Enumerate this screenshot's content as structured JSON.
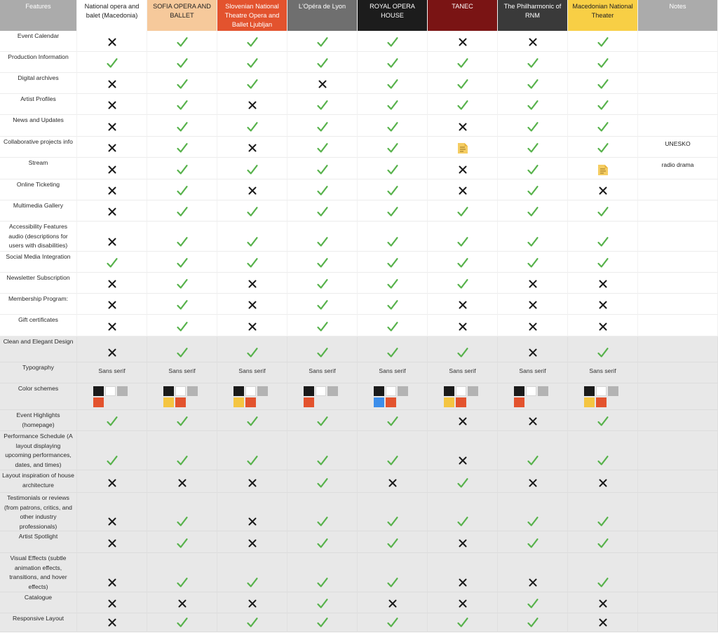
{
  "columns": [
    {
      "key": "features",
      "label": "Features",
      "bg": "#ababab",
      "fg": "#ffffff"
    },
    {
      "key": "nob",
      "label": "National opera and balet (Macedonia)",
      "bg": "#ffffff",
      "fg": "#222222"
    },
    {
      "key": "sofia",
      "label": "SOFIA OPERA AND BALLET",
      "bg": "#f6c99b",
      "fg": "#222222"
    },
    {
      "key": "sng",
      "label": "Slovenian National Theatre Opera and Ballet Ljubljan",
      "bg": "#e3532e",
      "fg": "#ffffff"
    },
    {
      "key": "lyon",
      "label": "L'Opéra de Lyon",
      "bg": "#6f6f6f",
      "fg": "#ffffff"
    },
    {
      "key": "roh",
      "label": "ROYAL OPERA HOUSE",
      "bg": "#1c1c1c",
      "fg": "#ffffff"
    },
    {
      "key": "tanec",
      "label": "TANEC",
      "bg": "#7a1414",
      "fg": "#ffffff"
    },
    {
      "key": "phil",
      "label": "The Philharmonic of RNM",
      "bg": "#3a3a3a",
      "fg": "#ffffff"
    },
    {
      "key": "mnt",
      "label": "Macedonian National Theater",
      "bg": "#f8cf45",
      "fg": "#222222"
    },
    {
      "key": "notes",
      "label": "Notes",
      "bg": "#ababab",
      "fg": "#ffffff"
    }
  ],
  "colors": {
    "check": "#57b24b",
    "cross": "#1a1a1a",
    "swatch_black": "#1a1a1a",
    "swatch_white": "#ffffff",
    "swatch_grey": "#b3b3b3",
    "swatch_red": "#e3532e",
    "swatch_yellow": "#f4c542",
    "swatch_blue": "#3d8eea",
    "note_icon": "#f5cd62"
  },
  "rows": [
    {
      "feature": "Event Calendar",
      "h": 30,
      "grey": false,
      "values": [
        "x",
        "v",
        "v",
        "v",
        "v",
        "x",
        "x",
        "v"
      ],
      "note": ""
    },
    {
      "feature": "Production Information",
      "h": 30,
      "grey": false,
      "values": [
        "v",
        "v",
        "v",
        "v",
        "v",
        "v",
        "v",
        "v"
      ],
      "note": ""
    },
    {
      "feature": "Digital archives",
      "h": 30,
      "grey": false,
      "values": [
        "x",
        "v",
        "v",
        "x",
        "v",
        "v",
        "v",
        "v"
      ],
      "note": ""
    },
    {
      "feature": "Artist Profiles",
      "h": 30,
      "grey": false,
      "values": [
        "x",
        "v",
        "x",
        "v",
        "v",
        "v",
        "v",
        "v"
      ],
      "note": ""
    },
    {
      "feature": "News and Updates",
      "h": 31,
      "grey": false,
      "values": [
        "x",
        "v",
        "v",
        "v",
        "v",
        "x",
        "v",
        "v"
      ],
      "note": ""
    },
    {
      "feature": "Collaborative projects info",
      "h": 30,
      "grey": false,
      "values": [
        "x",
        "v",
        "x",
        "v",
        "v",
        "n",
        "v",
        "v"
      ],
      "note": "UNESKO"
    },
    {
      "feature": "Stream",
      "h": 31,
      "grey": false,
      "values": [
        "x",
        "v",
        "v",
        "v",
        "v",
        "x",
        "v",
        "n"
      ],
      "note": "radio drama"
    },
    {
      "feature": "Online Ticketing",
      "h": 30,
      "grey": false,
      "values": [
        "x",
        "v",
        "x",
        "v",
        "v",
        "x",
        "v",
        "x"
      ],
      "note": ""
    },
    {
      "feature": "Multimedia Gallery",
      "h": 30,
      "grey": false,
      "values": [
        "x",
        "v",
        "v",
        "v",
        "v",
        "v",
        "v",
        "v"
      ],
      "note": ""
    },
    {
      "feature": "Accessibility Features audio (descriptions for users with disabilities)",
      "h": 43,
      "grey": false,
      "values": [
        "x",
        "v",
        "v",
        "v",
        "v",
        "v",
        "v",
        "v"
      ],
      "note": ""
    },
    {
      "feature": "Social Media Integration",
      "h": 30,
      "grey": false,
      "values": [
        "v",
        "v",
        "v",
        "v",
        "v",
        "v",
        "v",
        "v"
      ],
      "note": ""
    },
    {
      "feature": "Newsletter Subscription",
      "h": 30,
      "grey": false,
      "values": [
        "x",
        "v",
        "x",
        "v",
        "v",
        "v",
        "x",
        "x"
      ],
      "note": ""
    },
    {
      "feature": "Membership Program:",
      "h": 30,
      "grey": false,
      "values": [
        "x",
        "v",
        "x",
        "v",
        "v",
        "x",
        "x",
        "x"
      ],
      "note": ""
    },
    {
      "feature": "Gift certificates",
      "h": 31,
      "grey": false,
      "values": [
        "x",
        "v",
        "x",
        "v",
        "v",
        "x",
        "x",
        "x"
      ],
      "note": ""
    },
    {
      "feature": "Clean and Elegant Design",
      "h": 37,
      "grey": true,
      "values": [
        "x",
        "v",
        "v",
        "v",
        "v",
        "v",
        "x",
        "v"
      ],
      "note": ""
    },
    {
      "feature": "Typography",
      "h": 30,
      "grey": true,
      "values": [
        "Sans serif",
        "Sans serif",
        "Sans serif",
        "Sans serif",
        "Sans serif",
        "Sans serif",
        "Sans serif",
        "Sans serif"
      ],
      "note": ""
    },
    {
      "feature": "Color schemes",
      "h": 38,
      "grey": true,
      "values": [
        [
          "black",
          "white",
          "grey",
          "red"
        ],
        [
          "black",
          "white",
          "grey",
          "yellow",
          "red"
        ],
        [
          "black",
          "white",
          "grey",
          "yellow",
          "red"
        ],
        [
          "black",
          "white",
          "grey",
          "red"
        ],
        [
          "black",
          "white",
          "grey",
          "blue",
          "red"
        ],
        [
          "black",
          "white",
          "grey",
          "yellow",
          "red"
        ],
        [
          "black",
          "white",
          "grey",
          "red"
        ],
        [
          "black",
          "white",
          "grey",
          "yellow",
          "red"
        ]
      ],
      "note": ""
    },
    {
      "feature": "Event Highlights (homepage)",
      "h": 30,
      "grey": true,
      "values": [
        "v",
        "v",
        "v",
        "v",
        "v",
        "x",
        "x",
        "v"
      ],
      "note": ""
    },
    {
      "feature": "Performance Schedule (A layout displaying upcoming performances, dates, and times)",
      "h": 56,
      "grey": true,
      "values": [
        "v",
        "v",
        "v",
        "v",
        "v",
        "x",
        "v",
        "v"
      ],
      "note": ""
    },
    {
      "feature": "Layout inspiration of house architecture",
      "h": 32,
      "grey": true,
      "values": [
        "x",
        "x",
        "x",
        "v",
        "x",
        "v",
        "x",
        "x"
      ],
      "note": ""
    },
    {
      "feature": "Testimonials or reviews (from patrons, critics, and other industry professionals)",
      "h": 55,
      "grey": true,
      "values": [
        "x",
        "v",
        "x",
        "v",
        "v",
        "v",
        "v",
        "v"
      ],
      "note": ""
    },
    {
      "feature": "Artist Spotlight",
      "h": 31,
      "grey": true,
      "values": [
        "x",
        "v",
        "x",
        "v",
        "v",
        "x",
        "v",
        "v"
      ],
      "note": ""
    },
    {
      "feature": "Visual Effects (subtle animation effects, transitions, and hover effects)",
      "h": 56,
      "grey": true,
      "values": [
        "x",
        "v",
        "v",
        "v",
        "v",
        "x",
        "x",
        "v"
      ],
      "note": ""
    },
    {
      "feature": "Catalogue",
      "h": 30,
      "grey": true,
      "values": [
        "x",
        "x",
        "x",
        "v",
        "x",
        "x",
        "v",
        "x"
      ],
      "note": ""
    },
    {
      "feature": "Responsive Layout",
      "h": 27,
      "grey": true,
      "values": [
        "x",
        "v",
        "v",
        "v",
        "v",
        "v",
        "v",
        "x"
      ],
      "note": ""
    }
  ]
}
